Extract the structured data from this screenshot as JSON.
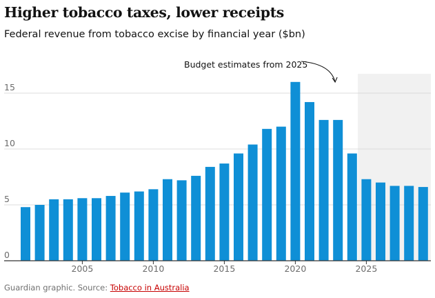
{
  "title": "Higher tobacco taxes, lower receipts",
  "subtitle": "Federal revenue from tobacco excise by financial year ($bn)",
  "footer": {
    "prefix": "Guardian graphic. Source: ",
    "link_text": "Tobacco in Australia"
  },
  "chart_data": {
    "type": "bar",
    "title": "Higher tobacco taxes, lower receipts",
    "subtitle": "Federal revenue from tobacco excise by financial year ($bn)",
    "xlabel": "",
    "ylabel": "",
    "ylim": [
      0,
      16.5
    ],
    "yticks": [
      0,
      5,
      10,
      15
    ],
    "xticks": [
      2005,
      2010,
      2015,
      2020,
      2025
    ],
    "categories": [
      2001,
      2002,
      2003,
      2004,
      2005,
      2006,
      2007,
      2008,
      2009,
      2010,
      2011,
      2012,
      2013,
      2014,
      2015,
      2016,
      2017,
      2018,
      2019,
      2020,
      2021,
      2022,
      2023,
      2024,
      2025,
      2026,
      2027,
      2028,
      2029
    ],
    "values": [
      4.8,
      5.0,
      5.5,
      5.5,
      5.6,
      5.6,
      5.8,
      6.1,
      6.2,
      6.4,
      7.3,
      7.2,
      7.6,
      8.4,
      8.7,
      9.6,
      10.4,
      11.8,
      12.0,
      16.0,
      14.2,
      12.6,
      12.6,
      9.6,
      7.3,
      7.0,
      6.7,
      6.7,
      6.6
    ],
    "estimate_region": {
      "from": 2025,
      "label": "Budget estimates from 2025"
    },
    "colors": {
      "bar": "#0f8fd6",
      "estimate_band": "#f1f1f1",
      "grid": "#dcdcdc",
      "axis": "#333333"
    }
  }
}
